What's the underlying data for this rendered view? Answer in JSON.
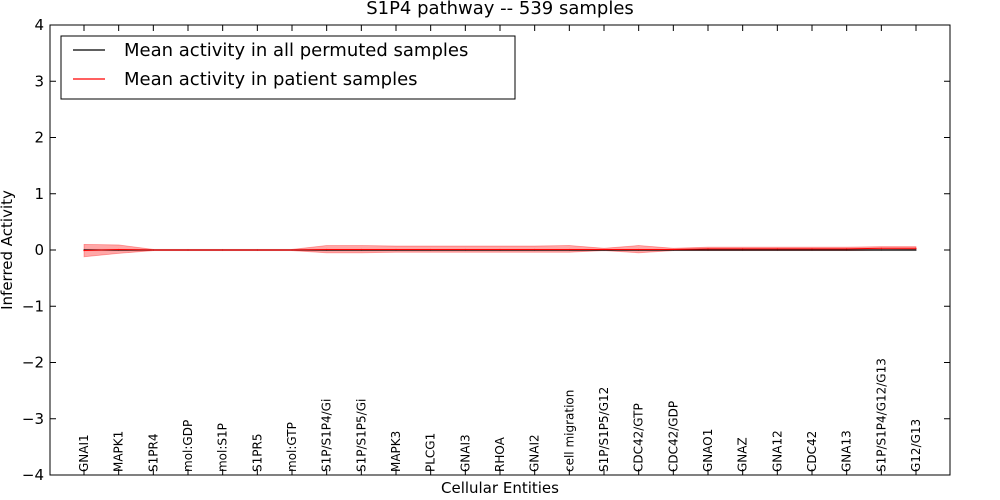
{
  "chart_data": {
    "type": "line",
    "title": "S1P4 pathway -- 539 samples",
    "xlabel": "Cellular Entities",
    "ylabel": "Inferred Activity",
    "ylim": [
      -4,
      4
    ],
    "yticks": [
      4,
      3,
      2,
      1,
      0,
      -1,
      -2,
      -3,
      -4
    ],
    "ytick_labels": [
      "4",
      "3",
      "2",
      "1",
      "0",
      "−1",
      "−2",
      "−3",
      "−4"
    ],
    "categories": [
      "GNAI1",
      "MAPK1",
      "S1PR4",
      "mol:GDP",
      "mol:S1P",
      "S1PR5",
      "mol:GTP",
      "S1P/S1P4/Gi",
      "S1P/S1P5/Gi",
      "MAPK3",
      "PLCG1",
      "GNAI3",
      "RHOA",
      "GNAI2",
      "cell migration",
      "S1P/S1P5/G12",
      "CDC42/GTP",
      "CDC42/GDP",
      "GNAO1",
      "GNAZ",
      "GNA12",
      "CDC42",
      "GNA13",
      "S1P/S1P4/G12/G13",
      "G12/G13"
    ],
    "series": [
      {
        "name": "Mean activity in all permuted samples",
        "color": "#000000",
        "values": [
          0.0,
          0.0,
          0.0,
          0.0,
          0.0,
          0.0,
          0.0,
          0.0,
          0.0,
          0.0,
          0.0,
          0.0,
          0.0,
          0.0,
          0.0,
          0.0,
          0.0,
          0.0,
          0.0,
          0.0,
          0.0,
          0.0,
          0.0,
          0.0,
          0.0
        ],
        "band": 0.02
      },
      {
        "name": "Mean activity in patient samples",
        "color": "#ff0000",
        "values": [
          -0.01,
          0.01,
          0.0,
          0.0,
          0.0,
          0.0,
          0.0,
          0.01,
          0.01,
          0.01,
          0.01,
          0.01,
          0.01,
          0.01,
          0.01,
          0.01,
          0.01,
          0.01,
          0.02,
          0.02,
          0.02,
          0.02,
          0.02,
          0.03,
          0.03
        ],
        "lower": [
          -0.12,
          -0.06,
          -0.01,
          -0.01,
          -0.01,
          -0.01,
          -0.01,
          -0.05,
          -0.05,
          -0.04,
          -0.04,
          -0.04,
          -0.04,
          -0.04,
          -0.04,
          -0.01,
          -0.05,
          -0.01,
          -0.01,
          -0.01,
          -0.01,
          -0.01,
          -0.01,
          0.0,
          0.01
        ],
        "upper": [
          0.1,
          0.09,
          0.01,
          0.01,
          0.01,
          0.01,
          0.01,
          0.08,
          0.08,
          0.07,
          0.07,
          0.07,
          0.07,
          0.07,
          0.08,
          0.03,
          0.08,
          0.03,
          0.05,
          0.05,
          0.05,
          0.05,
          0.05,
          0.06,
          0.06
        ]
      }
    ],
    "legend": {
      "position": "top-left",
      "entries": [
        "Mean activity in all permuted samples",
        "Mean activity in patient samples"
      ]
    }
  }
}
